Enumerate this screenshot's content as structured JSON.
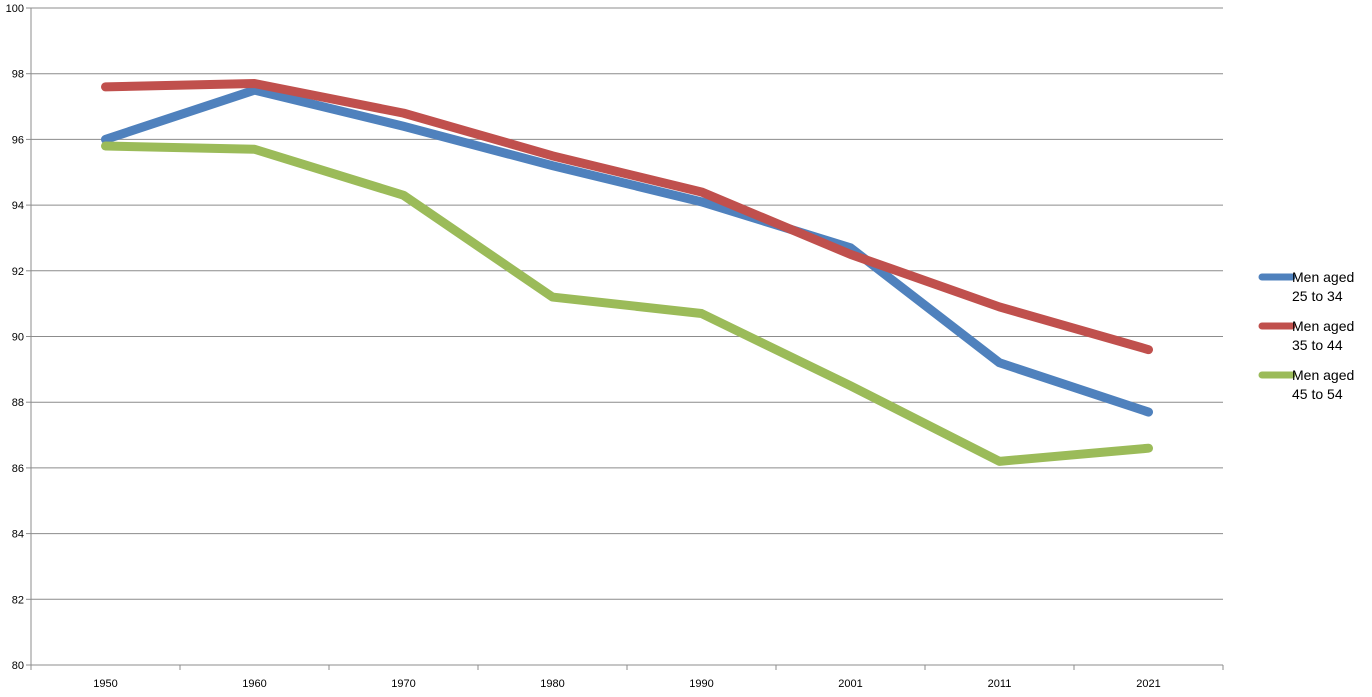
{
  "chart_data": {
    "type": "line",
    "title": "",
    "xlabel": "",
    "ylabel": "",
    "categories": [
      "1950",
      "1960",
      "1970",
      "1980",
      "1990",
      "2001",
      "2011",
      "2021"
    ],
    "ylim": [
      80,
      100
    ],
    "yticks": [
      80,
      82,
      84,
      86,
      88,
      90,
      92,
      94,
      96,
      98,
      100
    ],
    "grid": "horizontal",
    "legend_position": "right",
    "series": [
      {
        "name": "Men aged 25 to 34",
        "legend_lines": [
          "Men aged",
          "25 to 34"
        ],
        "color": "#4f81bd",
        "values": [
          96.0,
          97.5,
          96.4,
          95.2,
          94.1,
          92.7,
          89.2,
          87.7
        ]
      },
      {
        "name": "Men aged 35 to 44",
        "legend_lines": [
          "Men aged",
          "35 to 44"
        ],
        "color": "#c0504d",
        "values": [
          97.6,
          97.7,
          96.8,
          95.5,
          94.4,
          92.5,
          90.9,
          89.6
        ]
      },
      {
        "name": "Men aged 45 to 54",
        "legend_lines": [
          "Men aged",
          "45 to 54"
        ],
        "color": "#9bbb59",
        "values": [
          95.8,
          95.7,
          94.3,
          91.2,
          90.7,
          88.5,
          86.2,
          86.6
        ]
      }
    ]
  }
}
